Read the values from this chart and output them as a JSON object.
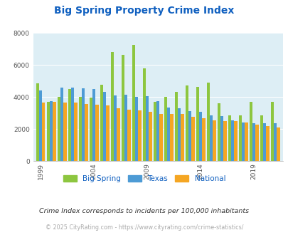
{
  "title": "Big Spring Property Crime Index",
  "title_color": "#1060c0",
  "subtitle": "Crime Index corresponds to incidents per 100,000 inhabitants",
  "footer": "© 2025 CityRating.com - https://www.cityrating.com/crime-statistics/",
  "years": [
    1999,
    2000,
    2001,
    2002,
    2003,
    2004,
    2005,
    2006,
    2007,
    2008,
    2009,
    2010,
    2011,
    2012,
    2013,
    2014,
    2015,
    2016,
    2017,
    2018,
    2019,
    2020,
    2021
  ],
  "big_spring": [
    4850,
    3700,
    4000,
    4500,
    4000,
    3950,
    4750,
    6800,
    6650,
    7250,
    5800,
    3700,
    4000,
    4300,
    4700,
    4650,
    4900,
    3600,
    2850,
    2850,
    3700,
    2850,
    3700
  ],
  "texas": [
    4400,
    3750,
    4600,
    4600,
    4550,
    4500,
    4300,
    4100,
    4150,
    4000,
    4050,
    3750,
    3350,
    3300,
    3100,
    3050,
    2850,
    2800,
    2550,
    2400,
    2350,
    2350,
    2380
  ],
  "national": [
    3650,
    3700,
    3650,
    3650,
    3550,
    3500,
    3450,
    3300,
    3200,
    3150,
    3050,
    2950,
    2950,
    2950,
    2750,
    2650,
    2550,
    2480,
    2480,
    2420,
    2250,
    2200,
    2080
  ],
  "color_big_spring": "#8dc63f",
  "color_texas": "#4d9bd5",
  "color_national": "#f5a623",
  "bg_color": "#ddeef5",
  "ylim": [
    0,
    8000
  ],
  "yticks": [
    0,
    2000,
    4000,
    6000,
    8000
  ],
  "xtick_years": [
    1999,
    2004,
    2009,
    2014,
    2019
  ]
}
